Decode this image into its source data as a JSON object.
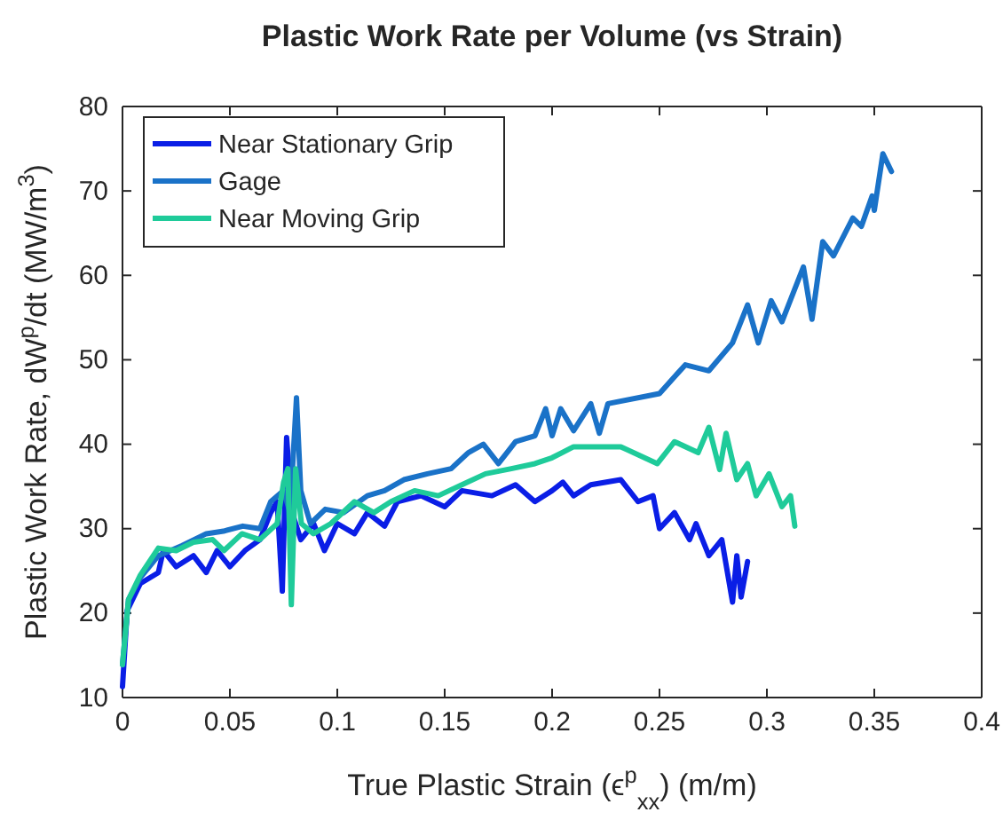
{
  "chart_data": {
    "type": "line",
    "title": "Plastic Work Rate per Volume (vs Strain)",
    "xlabel": "True Plastic Strain (ϵ$^{p}$$_{xx}$) (m/m)",
    "ylabel": "Plastic Work Rate, dW$^{p}$/dt (MW/m$^{3}$)",
    "xlim": [
      0,
      0.4
    ],
    "ylim": [
      10,
      80
    ],
    "xticks": [
      0,
      0.05,
      0.1,
      0.15,
      0.2,
      0.25,
      0.3,
      0.35,
      0.4
    ],
    "yticks": [
      10,
      20,
      30,
      40,
      50,
      60,
      70,
      80
    ],
    "grid": false,
    "legend": "top left",
    "line_style": "solid",
    "marker": "none",
    "series": [
      {
        "name": "Near Stationary Grip",
        "color": "#0a1ee6",
        "x": [
          0,
          0.0022,
          0.0083,
          0.0167,
          0.019,
          0.025,
          0.033,
          0.039,
          0.044,
          0.05,
          0.057,
          0.064,
          0.069,
          0.072,
          0.0744,
          0.0764,
          0.079,
          0.083,
          0.089,
          0.094,
          0.1,
          0.108,
          0.114,
          0.122,
          0.128,
          0.139,
          0.15,
          0.158,
          0.172,
          0.183,
          0.192,
          0.2,
          0.205,
          0.21,
          0.218,
          0.232,
          0.24,
          0.247,
          0.25,
          0.257,
          0.264,
          0.267,
          0.273,
          0.279,
          0.284,
          0.286,
          0.288,
          0.291
        ],
        "values": [
          11.3,
          20.3,
          23.5,
          24.8,
          27.4,
          25.5,
          26.8,
          24.8,
          27.4,
          25.5,
          27.4,
          28.7,
          31.9,
          33.2,
          22.6,
          40.8,
          31.9,
          28.7,
          30.6,
          27.4,
          30.6,
          29.4,
          31.9,
          30.3,
          33.2,
          33.9,
          32.6,
          34.5,
          33.9,
          35.2,
          33.2,
          34.5,
          35.5,
          33.9,
          35.2,
          35.8,
          33.2,
          33.9,
          30,
          31.9,
          28.7,
          30.6,
          26.8,
          28.7,
          21.3,
          26.8,
          21.9,
          26.1
        ]
      },
      {
        "name": "Gage",
        "color": "#1a72c8",
        "x": [
          0,
          0.0028,
          0.0083,
          0.0167,
          0.0278,
          0.039,
          0.047,
          0.056,
          0.064,
          0.069,
          0.075,
          0.078,
          0.081,
          0.083,
          0.0875,
          0.0944,
          0.103,
          0.114,
          0.122,
          0.131,
          0.142,
          0.153,
          0.161,
          0.168,
          0.175,
          0.183,
          0.192,
          0.197,
          0.2,
          0.204,
          0.21,
          0.218,
          0.222,
          0.226,
          0.25,
          0.262,
          0.273,
          0.284,
          0.291,
          0.296,
          0.302,
          0.307,
          0.317,
          0.321,
          0.326,
          0.331,
          0.34,
          0.344,
          0.349,
          0.35,
          0.354,
          0.358
        ],
        "values": [
          13.9,
          21.6,
          24.2,
          26.8,
          28,
          29.4,
          29.7,
          30.3,
          30,
          33.2,
          34.5,
          31.9,
          45.5,
          34.5,
          30.6,
          32.3,
          31.9,
          33.9,
          34.5,
          35.8,
          36.5,
          37.1,
          39,
          40,
          37.7,
          40.3,
          41,
          44.2,
          41,
          44.2,
          41.6,
          44.8,
          41.3,
          44.8,
          46,
          49.4,
          48.7,
          52,
          56.5,
          52,
          57,
          54.5,
          61,
          54.8,
          64,
          62.3,
          66.8,
          65.8,
          69.4,
          67.7,
          74.4,
          72.3
        ]
      },
      {
        "name": "Near Moving Grip",
        "color": "#1fcb9a",
        "x": [
          0,
          0.0028,
          0.0083,
          0.0167,
          0.025,
          0.033,
          0.042,
          0.0472,
          0.0556,
          0.0639,
          0.072,
          0.075,
          0.077,
          0.0786,
          0.0806,
          0.0833,
          0.0889,
          0.097,
          0.108,
          0.117,
          0.125,
          0.136,
          0.147,
          0.158,
          0.169,
          0.181,
          0.192,
          0.2,
          0.21,
          0.232,
          0.249,
          0.257,
          0.268,
          0.273,
          0.278,
          0.281,
          0.286,
          0.291,
          0.295,
          0.301,
          0.307,
          0.311,
          0.313
        ],
        "values": [
          13.9,
          21.6,
          24.5,
          27.7,
          27.4,
          28.4,
          28.7,
          27.4,
          29.4,
          28.7,
          30.6,
          35.5,
          37.1,
          21,
          37.1,
          30.6,
          29.4,
          30.6,
          33.2,
          31.9,
          33.2,
          34.5,
          33.9,
          35.2,
          36.5,
          37.1,
          37.7,
          38.4,
          39.7,
          39.7,
          37.7,
          40.3,
          39,
          42,
          37,
          41.3,
          35.8,
          37.7,
          33.9,
          36.5,
          32.6,
          33.9,
          30.3
        ]
      }
    ]
  }
}
